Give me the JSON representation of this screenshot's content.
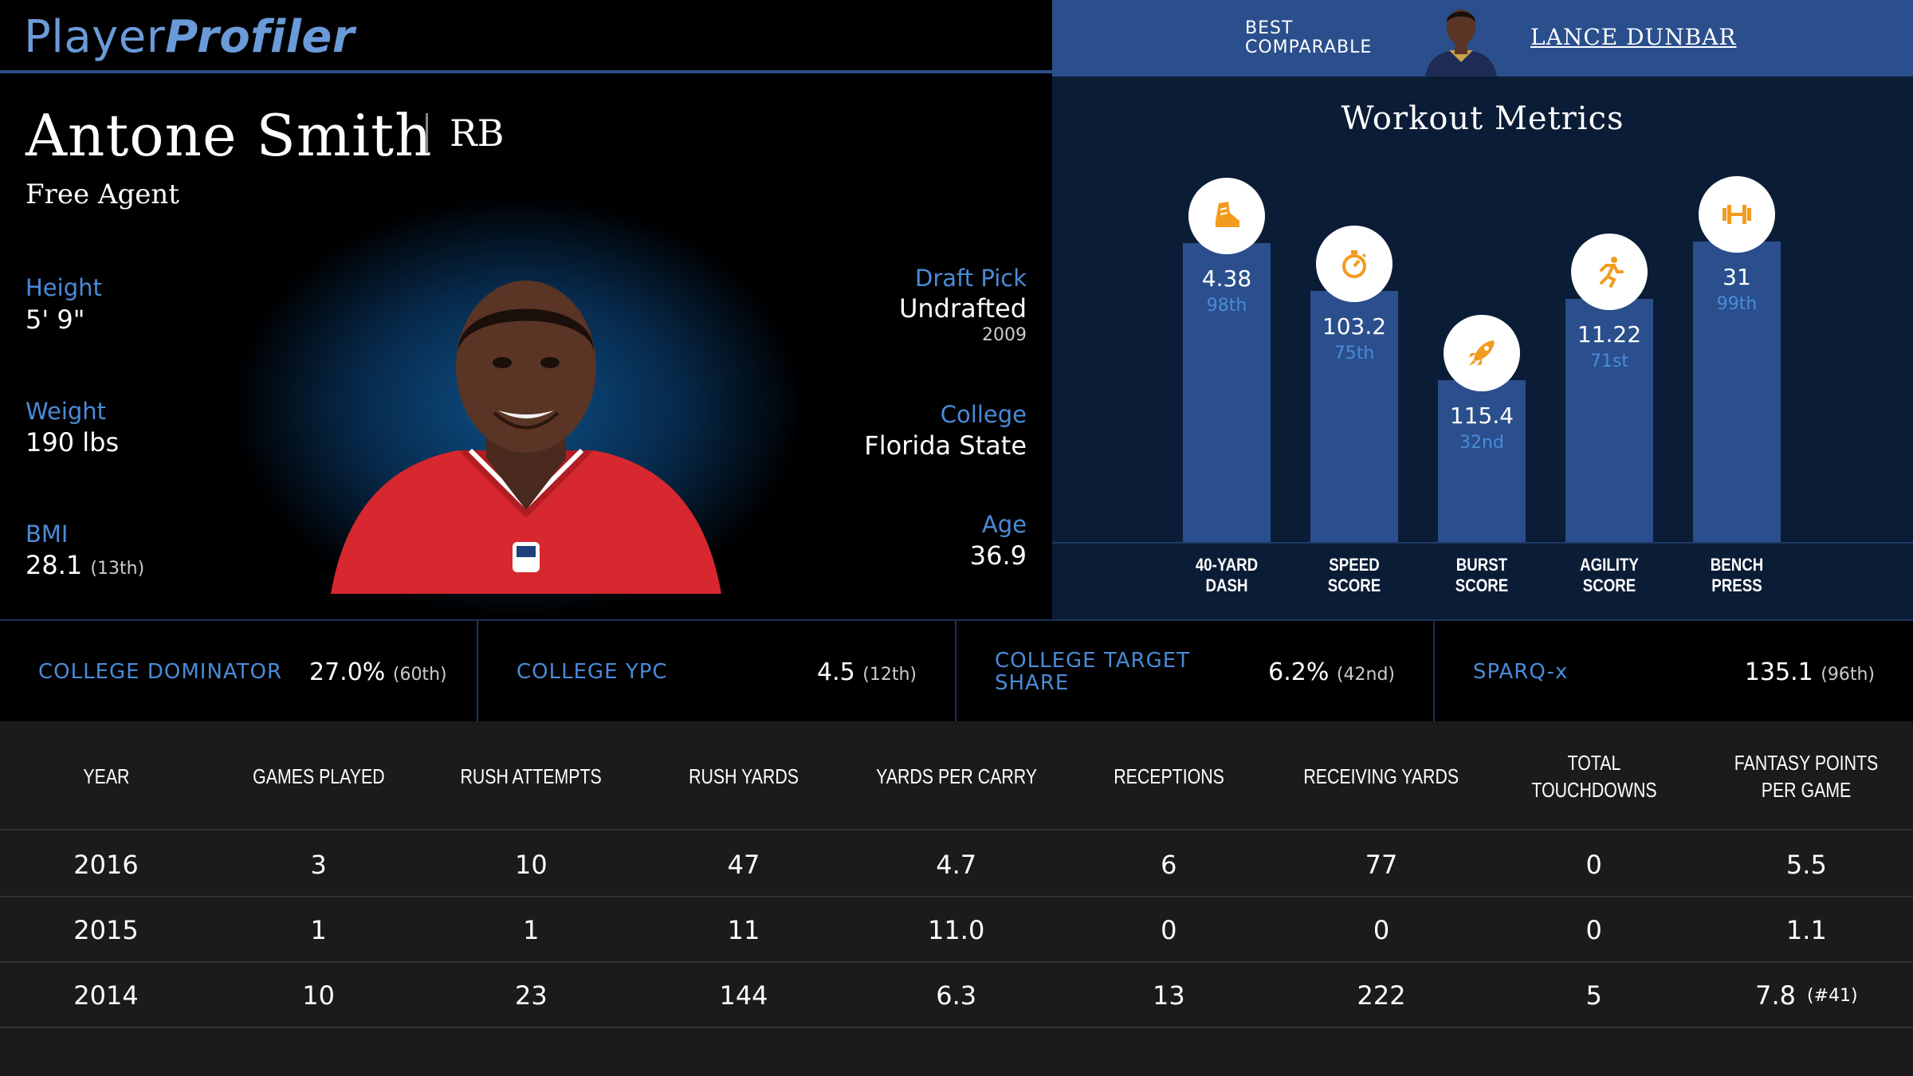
{
  "brand": {
    "part1": "Player",
    "part2": "Profiler"
  },
  "comparable": {
    "label_line1": "BEST",
    "label_line2": "COMPARABLE",
    "name": "LANCE DUNBAR"
  },
  "player": {
    "name": "Antone Smith",
    "position": "RB",
    "team": "Free Agent",
    "height_label": "Height",
    "height": "5' 9\"",
    "weight_label": "Weight",
    "weight": "190 lbs",
    "bmi_label": "BMI",
    "bmi": "28.1",
    "bmi_rank": "(13th)",
    "draft_label": "Draft Pick",
    "draft": "Undrafted",
    "draft_year": "2009",
    "college_label": "College",
    "college": "Florida State",
    "age_label": "Age",
    "age": "36.9"
  },
  "workout": {
    "title": "Workout Metrics",
    "metrics": [
      {
        "value": "4.38",
        "percentile": "98th",
        "label1": "40-YARD",
        "label2": "DASH",
        "icon": "shoe-icon",
        "pct": 98
      },
      {
        "value": "103.2",
        "percentile": "75th",
        "label1": "SPEED",
        "label2": "SCORE",
        "icon": "stopwatch-icon",
        "pct": 75
      },
      {
        "value": "115.4",
        "percentile": "32nd",
        "label1": "BURST",
        "label2": "SCORE",
        "icon": "rocket-icon",
        "pct": 32
      },
      {
        "value": "11.22",
        "percentile": "71st",
        "label1": "AGILITY",
        "label2": "SCORE",
        "icon": "runner-icon",
        "pct": 71
      },
      {
        "value": "31",
        "percentile": "99th",
        "label1": "BENCH",
        "label2": "PRESS",
        "icon": "barbell-icon",
        "pct": 99
      }
    ],
    "colors": {
      "bar": "#2a4f8c",
      "icon": "#f29b1e"
    }
  },
  "college_metrics": [
    {
      "label": "COLLEGE DOMINATOR",
      "value": "27.0%",
      "rank": "(60th)"
    },
    {
      "label": "COLLEGE YPC",
      "value": "4.5",
      "rank": "(12th)"
    },
    {
      "label_line1": "COLLEGE TARGET",
      "label_line2": "SHARE",
      "value": "6.2%",
      "rank": "(42nd)"
    },
    {
      "label": "SPARQ-x",
      "value": "135.1",
      "rank": "(96th)"
    }
  ],
  "stats_table": {
    "headers": [
      "YEAR",
      "GAMES PLAYED",
      "RUSH ATTEMPTS",
      "RUSH YARDS",
      "YARDS PER CARRY",
      "RECEPTIONS",
      "RECEIVING YARDS",
      "TOTAL TOUCHDOWNS",
      "FANTASY POINTS PER GAME"
    ],
    "rows": [
      [
        "2016",
        "3",
        "10",
        "47",
        "4.7",
        "6",
        "77",
        "0",
        "5.5",
        ""
      ],
      [
        "2015",
        "1",
        "1",
        "11",
        "11.0",
        "0",
        "0",
        "0",
        "1.1",
        ""
      ],
      [
        "2014",
        "10",
        "23",
        "144",
        "6.3",
        "13",
        "222",
        "5",
        "7.8",
        "(#41)"
      ]
    ]
  }
}
